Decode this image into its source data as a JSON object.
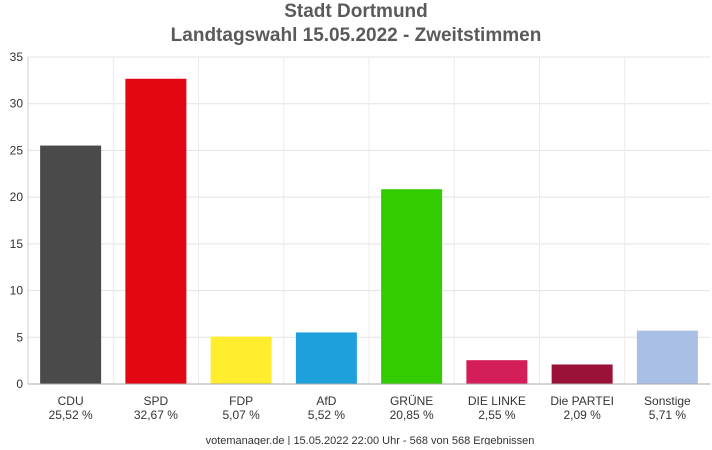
{
  "chart_data": {
    "type": "bar",
    "title": "Stadt Dortmund",
    "subtitle": "Landtagswahl 15.05.2022  - Zweitstimmen",
    "xlabel": "",
    "ylabel": "",
    "ylim": [
      0,
      35
    ],
    "yticks": [
      0,
      5,
      10,
      15,
      20,
      25,
      30,
      35
    ],
    "grid": true,
    "legend": "none",
    "categories": [
      "CDU",
      "SPD",
      "FDP",
      "AfD",
      "GRÜNE",
      "DIE LINKE",
      "Die PARTEI",
      "Sonstige"
    ],
    "values": [
      25.52,
      32.67,
      5.07,
      5.52,
      20.85,
      2.55,
      2.09,
      5.71
    ],
    "value_labels": [
      "25,52 %",
      "32,67 %",
      "5,07 %",
      "5,52 %",
      "20,85 %",
      "2,55 %",
      "2,09 %",
      "5,71 %"
    ],
    "colors": [
      "#4a4a4a",
      "#e30613",
      "#ffed2e",
      "#1ea0dc",
      "#33cc00",
      "#d41e5a",
      "#9b1239",
      "#aabfe6"
    ]
  },
  "footer": "votemanager.de | 15.05.2022 22:00 Uhr - 568 von 568 Ergebnissen"
}
